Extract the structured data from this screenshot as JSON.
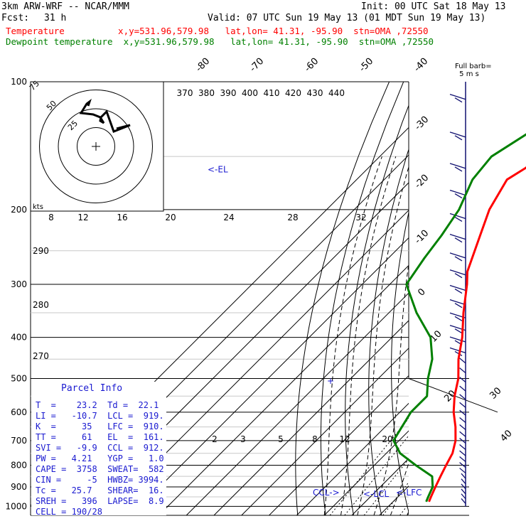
{
  "header": {
    "model": "3km ARW-WRF -- NCAR/MMM",
    "init": "Init: 00 UTC Sat 18 May 13",
    "fcst_label": "Fcst:",
    "fcst_value": "31 h",
    "valid": "Valid: 07 UTC Sun 19 May 13 (01 MDT Sun 19 May 13)",
    "temp_line": "Temperature          x,y=531.96,579.98   lat,lon= 41.31, -95.90  stn=OMA ,72550",
    "dew_line": "Dewpoint temperature  x,y=531.96,579.98   lat,lon= 41.31, -95.90  stn=OMA ,72550"
  },
  "chart_data": {
    "type": "line",
    "title": "Skew-T log-P sounding",
    "pressure_ticks": [
      "100",
      "200",
      "300",
      "400",
      "500",
      "600",
      "700",
      "800",
      "900",
      "1000"
    ],
    "isotherm_labels": [
      "-80",
      "-70",
      "-60",
      "-50",
      "-40",
      "-30",
      "-20",
      "-10",
      "0",
      "10",
      "20",
      "30",
      "40"
    ],
    "theta_labels": [
      "370",
      "380",
      "390",
      "400",
      "410",
      "420",
      "430",
      "440"
    ],
    "hodo_speed_labels": [
      "8",
      "12",
      "16",
      "20",
      "24",
      "28",
      "32"
    ],
    "mixing_ratio_labels": [
      "2",
      "3",
      "5",
      "8",
      "12",
      "20"
    ],
    "dry_adiabat_labels": [
      "290",
      "280",
      "270"
    ],
    "hodo_ring_labels": [
      "75",
      "50",
      "25"
    ],
    "hodo_kts": "kts",
    "wind_barb_key": "Full barb=\n 5 m s",
    "el_label": "<-EL",
    "ccl_label": "CCL->",
    "lcl_label": "<-LCL",
    "lfc_label": "<-LFC",
    "temperature": {
      "name": "Temperature",
      "color": "#ff0000",
      "points": [
        [
          100,
          -51
        ],
        [
          110,
          -56
        ],
        [
          120,
          -58
        ],
        [
          140,
          -60
        ],
        [
          160,
          -63
        ],
        [
          170,
          -65.5
        ],
        [
          200,
          -61
        ],
        [
          230,
          -55
        ],
        [
          280,
          -46.5
        ],
        [
          300,
          -42
        ],
        [
          350,
          -33
        ],
        [
          400,
          -24.5
        ],
        [
          450,
          -18
        ],
        [
          500,
          -11
        ],
        [
          550,
          -6
        ],
        [
          600,
          -0.5
        ],
        [
          650,
          5.5
        ],
        [
          700,
          10.5
        ],
        [
          750,
          14
        ],
        [
          800,
          16
        ],
        [
          850,
          18
        ],
        [
          900,
          20
        ],
        [
          950,
          22
        ],
        [
          975,
          23
        ]
      ]
    },
    "dewpoint": {
      "name": "Dewpoint temperature",
      "color": "#008000",
      "points": [
        [
          100,
          -59
        ],
        [
          120,
          -71
        ],
        [
          150,
          -79.5
        ],
        [
          170,
          -78
        ],
        [
          200,
          -72
        ],
        [
          230,
          -69
        ],
        [
          260,
          -67
        ],
        [
          300,
          -64
        ],
        [
          350,
          -50
        ],
        [
          400,
          -36
        ],
        [
          450,
          -27.5
        ],
        [
          500,
          -22
        ],
        [
          550,
          -16
        ],
        [
          600,
          -16
        ],
        [
          700,
          -12
        ],
        [
          750,
          -5
        ],
        [
          800,
          5
        ],
        [
          850,
          15
        ],
        [
          900,
          19
        ],
        [
          950,
          21
        ],
        [
          975,
          22
        ]
      ]
    },
    "parcel_info": {
      "title": "Parcel Info",
      "rows": [
        "T  =    23.2  Td =  22.1",
        "LI =   -10.7  LCL =  919.",
        "K  =     35   LFC =  910.",
        "TT =     61   EL  =  161.",
        "SVI =   -9.9  CCL =  912.",
        "PW =   4.21   YGP =   1.0",
        "CAPE =  3758  SWEAT=  582",
        "CIN =     -5  HWBZ= 3994.",
        "Tc =   25.7   SHEAR=  16.",
        "SREH =   396  LAPSE=  8.9",
        "CELL = 190/28"
      ]
    }
  }
}
